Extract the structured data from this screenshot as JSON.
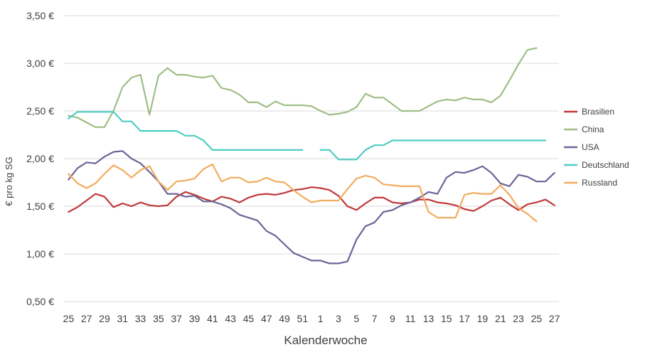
{
  "chart_data": {
    "type": "line",
    "xlabel": "Kalenderwoche",
    "ylabel": "€ pro kg SG",
    "ylim": [
      0.5,
      3.5
    ],
    "grid": "horizontal",
    "legend_position": "right",
    "yticks": [
      {
        "value": 0.5,
        "label": "0,50 €"
      },
      {
        "value": 1.0,
        "label": "1,00 €"
      },
      {
        "value": 1.5,
        "label": "1,50 €"
      },
      {
        "value": 2.0,
        "label": "2,00 €"
      },
      {
        "value": 2.5,
        "label": "2,50 €"
      },
      {
        "value": 3.0,
        "label": "3,00 €"
      },
      {
        "value": 3.5,
        "label": "3,50 €"
      }
    ],
    "x": [
      "25",
      "26",
      "27",
      "28",
      "29",
      "30",
      "31",
      "32",
      "33",
      "34",
      "35",
      "36",
      "37",
      "38",
      "39",
      "40",
      "41",
      "42",
      "43",
      "44",
      "45",
      "46",
      "47",
      "48",
      "49",
      "50",
      "51",
      "52",
      "1",
      "2",
      "3",
      "4",
      "5",
      "6",
      "7",
      "8",
      "9",
      "10",
      "11",
      "12",
      "13",
      "14",
      "15",
      "16",
      "17",
      "18",
      "19",
      "20",
      "21",
      "22",
      "23",
      "24",
      "25",
      "26",
      "27"
    ],
    "xtick_labels": [
      "25",
      "27",
      "29",
      "31",
      "33",
      "35",
      "37",
      "39",
      "41",
      "43",
      "45",
      "47",
      "49",
      "51",
      "1",
      "3",
      "5",
      "7",
      "9",
      "11",
      "13",
      "15",
      "17",
      "19",
      "21",
      "23",
      "25",
      "27"
    ],
    "series": [
      {
        "name": "Brasilien",
        "color": "#c0393b",
        "values": [
          1.44,
          1.49,
          1.56,
          1.63,
          1.6,
          1.49,
          1.53,
          1.5,
          1.54,
          1.51,
          1.5,
          1.51,
          1.6,
          1.65,
          1.62,
          1.58,
          1.55,
          1.6,
          1.58,
          1.54,
          1.59,
          1.62,
          1.63,
          1.62,
          1.64,
          1.67,
          1.68,
          1.7,
          1.69,
          1.67,
          1.61,
          1.5,
          1.46,
          1.53,
          1.59,
          1.59,
          1.54,
          1.53,
          1.54,
          1.57,
          1.57,
          1.54,
          1.53,
          1.51,
          1.47,
          1.45,
          1.5,
          1.56,
          1.59,
          1.52,
          1.46,
          1.52,
          1.54,
          1.57,
          1.51
        ]
      },
      {
        "name": "China",
        "color": "#9fbe86",
        "values": [
          2.45,
          2.43,
          2.38,
          2.33,
          2.33,
          2.5,
          2.75,
          2.85,
          2.88,
          2.46,
          2.87,
          2.95,
          2.88,
          2.88,
          2.86,
          2.85,
          2.87,
          2.74,
          2.72,
          2.67,
          2.59,
          2.59,
          2.54,
          2.6,
          2.56,
          2.56,
          2.56,
          2.55,
          2.5,
          2.46,
          2.47,
          2.49,
          2.54,
          2.68,
          2.64,
          2.64,
          2.57,
          2.5,
          2.5,
          2.5,
          2.55,
          2.6,
          2.62,
          2.61,
          2.64,
          2.62,
          2.62,
          2.59,
          2.66,
          2.82,
          2.99,
          3.14,
          3.16,
          null,
          null
        ]
      },
      {
        "name": "USA",
        "color": "#6b6598",
        "values": [
          1.78,
          1.9,
          1.96,
          1.95,
          2.02,
          2.07,
          2.08,
          2.0,
          1.95,
          1.86,
          1.76,
          1.63,
          1.63,
          1.6,
          1.61,
          1.55,
          1.55,
          1.52,
          1.48,
          1.41,
          1.38,
          1.35,
          1.24,
          1.19,
          1.1,
          1.01,
          0.97,
          0.93,
          0.93,
          0.9,
          0.9,
          0.92,
          1.15,
          1.29,
          1.33,
          1.44,
          1.46,
          1.51,
          1.54,
          1.59,
          1.65,
          1.63,
          1.8,
          1.86,
          1.85,
          1.88,
          1.92,
          1.85,
          1.74,
          1.71,
          1.83,
          1.81,
          1.76,
          1.76,
          1.85
        ]
      },
      {
        "name": "Deutschland",
        "color": "#4ecdc4",
        "values": [
          2.42,
          2.49,
          2.49,
          2.49,
          2.49,
          2.49,
          2.39,
          2.39,
          2.29,
          2.29,
          2.29,
          2.29,
          2.29,
          2.24,
          2.24,
          2.19,
          2.09,
          2.09,
          2.09,
          2.09,
          2.09,
          2.09,
          2.09,
          2.09,
          2.09,
          2.09,
          2.09,
          null,
          2.09,
          2.09,
          1.99,
          1.99,
          1.99,
          2.09,
          2.14,
          2.14,
          2.19,
          2.19,
          2.19,
          2.19,
          2.19,
          2.19,
          2.19,
          2.19,
          2.19,
          2.19,
          2.19,
          2.19,
          2.19,
          2.19,
          2.19,
          2.19,
          2.19,
          2.19,
          null
        ]
      },
      {
        "name": "Russland",
        "color": "#f2ac5d",
        "values": [
          1.84,
          1.74,
          1.69,
          1.74,
          1.84,
          1.93,
          1.88,
          1.8,
          1.88,
          1.92,
          1.76,
          1.67,
          1.76,
          1.77,
          1.79,
          1.89,
          1.94,
          1.76,
          1.8,
          1.8,
          1.75,
          1.76,
          1.8,
          1.76,
          1.75,
          1.67,
          1.6,
          1.54,
          1.56,
          1.56,
          1.56,
          1.68,
          1.79,
          1.82,
          1.8,
          1.73,
          1.72,
          1.71,
          1.71,
          1.71,
          1.44,
          1.38,
          1.38,
          1.38,
          1.62,
          1.64,
          1.63,
          1.63,
          1.72,
          1.62,
          1.48,
          1.42,
          1.34,
          null,
          null
        ]
      }
    ]
  }
}
